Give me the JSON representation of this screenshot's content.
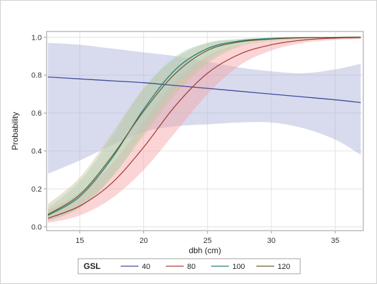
{
  "chart_data": {
    "type": "line",
    "xlabel": "dbh (cm)",
    "ylabel": "Probability",
    "xlim": [
      12.4,
      37.2
    ],
    "ylim": [
      -0.02,
      1.03
    ],
    "xticks": [
      "15",
      "20",
      "25",
      "30",
      "35"
    ],
    "yticks": [
      "0.0",
      "0.2",
      "0.4",
      "0.6",
      "0.8",
      "1.0"
    ],
    "xtick_values": [
      15,
      20,
      25,
      30,
      35
    ],
    "ytick_values": [
      0,
      0.2,
      0.4,
      0.6,
      0.8,
      1.0
    ],
    "grid": true,
    "legend": {
      "title": "GSL",
      "placement": "bottom"
    },
    "x": [
      12.5,
      15,
      17.5,
      20,
      22.5,
      25,
      27.5,
      30,
      32.5,
      35,
      37
    ],
    "series": [
      {
        "name": "40",
        "color": "#3b4a9a",
        "band_color": "#a9b0d8",
        "values": [
          0.79,
          0.78,
          0.77,
          0.76,
          0.745,
          0.73,
          0.715,
          0.7,
          0.685,
          0.67,
          0.655
        ],
        "lower": [
          0.28,
          0.35,
          0.43,
          0.5,
          0.53,
          0.54,
          0.55,
          0.55,
          0.52,
          0.46,
          0.38
        ],
        "upper": [
          0.97,
          0.96,
          0.94,
          0.92,
          0.9,
          0.87,
          0.84,
          0.82,
          0.81,
          0.83,
          0.86
        ]
      },
      {
        "name": "80",
        "color": "#a83a3a",
        "band_color": "#f7a1a1",
        "values": [
          0.045,
          0.11,
          0.23,
          0.42,
          0.64,
          0.81,
          0.91,
          0.96,
          0.985,
          0.995,
          0.998
        ],
        "lower": [
          0.02,
          0.06,
          0.15,
          0.3,
          0.5,
          0.7,
          0.85,
          0.93,
          0.97,
          0.985,
          0.99
        ],
        "upper": [
          0.09,
          0.18,
          0.33,
          0.55,
          0.77,
          0.9,
          0.96,
          0.985,
          0.995,
          0.999,
          1.0
        ]
      },
      {
        "name": "100",
        "color": "#1f7f7a",
        "band_color": "#9fdcd2",
        "values": [
          0.06,
          0.16,
          0.36,
          0.62,
          0.83,
          0.94,
          0.98,
          0.993,
          0.998,
          0.999,
          1.0
        ],
        "lower": [
          0.03,
          0.1,
          0.26,
          0.5,
          0.73,
          0.88,
          0.96,
          0.985,
          0.995,
          0.998,
          0.999
        ],
        "upper": [
          0.1,
          0.24,
          0.47,
          0.73,
          0.9,
          0.97,
          0.99,
          0.998,
          1.0,
          1.0,
          1.0
        ]
      },
      {
        "name": "120",
        "color": "#6e5a2a",
        "band_color": "#c8c19a",
        "values": [
          0.065,
          0.17,
          0.37,
          0.61,
          0.81,
          0.93,
          0.975,
          0.99,
          0.997,
          0.999,
          1.0
        ],
        "lower": [
          0.03,
          0.1,
          0.26,
          0.48,
          0.7,
          0.86,
          0.95,
          0.98,
          0.99,
          0.997,
          0.999
        ],
        "upper": [
          0.12,
          0.26,
          0.49,
          0.73,
          0.89,
          0.97,
          0.99,
          0.997,
          1.0,
          1.0,
          1.0
        ]
      }
    ]
  }
}
